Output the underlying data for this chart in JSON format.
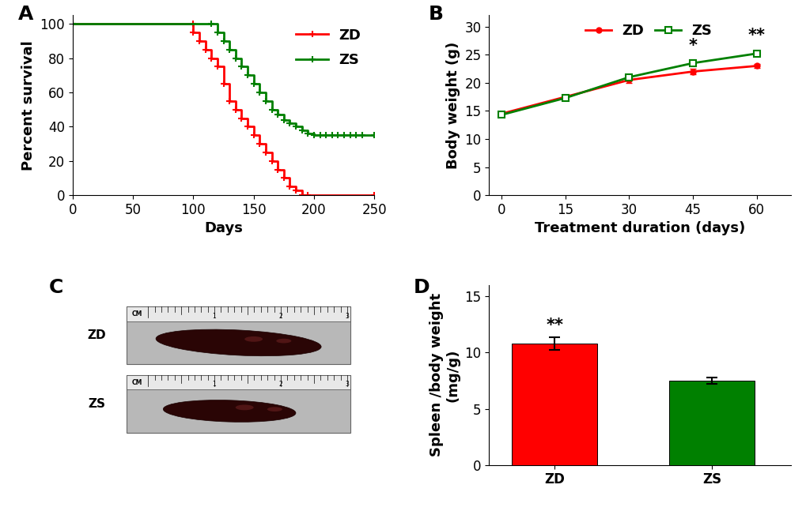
{
  "panel_A": {
    "label": "A",
    "zd_x": [
      0,
      100,
      100,
      105,
      110,
      115,
      120,
      125,
      130,
      135,
      140,
      145,
      150,
      155,
      160,
      165,
      170,
      175,
      180,
      185,
      190,
      195,
      250
    ],
    "zd_y": [
      100,
      100,
      95,
      90,
      85,
      80,
      75,
      65,
      55,
      50,
      45,
      40,
      35,
      30,
      25,
      20,
      15,
      10,
      5,
      3,
      0,
      0,
      0
    ],
    "zs_x": [
      0,
      115,
      120,
      125,
      130,
      135,
      140,
      145,
      150,
      155,
      160,
      165,
      170,
      175,
      180,
      185,
      190,
      195,
      200,
      205,
      210,
      215,
      220,
      225,
      230,
      235,
      240,
      250
    ],
    "zs_y": [
      100,
      100,
      95,
      90,
      85,
      80,
      75,
      70,
      65,
      60,
      55,
      50,
      47,
      44,
      42,
      40,
      38,
      36,
      35,
      35,
      35,
      35,
      35,
      35,
      35,
      35,
      35,
      35
    ],
    "zd_color": "#ff0000",
    "zs_color": "#008000",
    "xlabel": "Days",
    "ylabel": "Percent survival",
    "xlim": [
      0,
      250
    ],
    "ylim": [
      0,
      105
    ],
    "xticks": [
      0,
      50,
      100,
      150,
      200,
      250
    ],
    "yticks": [
      0,
      20,
      40,
      60,
      80,
      100
    ]
  },
  "panel_B": {
    "label": "B",
    "days": [
      0,
      15,
      30,
      45,
      60
    ],
    "zd_mean": [
      14.5,
      17.5,
      20.5,
      22.0,
      23.0
    ],
    "zd_err": [
      0.3,
      0.4,
      0.5,
      0.5,
      0.4
    ],
    "zs_mean": [
      14.3,
      17.3,
      21.0,
      23.5,
      25.2
    ],
    "zs_err": [
      0.3,
      0.4,
      0.5,
      0.5,
      0.5
    ],
    "zd_color": "#ff0000",
    "zs_color": "#008000",
    "xlabel": "Treatment duration (days)",
    "ylabel": "Body weight (g)",
    "xlim": [
      -3,
      68
    ],
    "ylim": [
      0,
      32
    ],
    "xticks": [
      0,
      15,
      30,
      45,
      60
    ],
    "yticks": [
      0,
      5,
      10,
      15,
      20,
      25,
      30
    ],
    "star45": "*",
    "star60": "**",
    "star45_y": 25.2,
    "star60_y": 27.0
  },
  "panel_D": {
    "label": "D",
    "categories": [
      "ZD",
      "ZS"
    ],
    "values": [
      10.8,
      7.5
    ],
    "errors": [
      0.55,
      0.3
    ],
    "colors": [
      "#ff0000",
      "#008000"
    ],
    "ylabel": "Spleen /body weight\n(mg/g)",
    "ylim": [
      0,
      16
    ],
    "yticks": [
      0,
      5,
      10,
      15
    ],
    "annotation": "**"
  },
  "panel_C": {
    "label": "C",
    "zd_label": "ZD",
    "zs_label": "ZS",
    "bg_color": "#c8c8c8",
    "photo_bg": "#d0d0d0",
    "ruler_color": "#f0f0f0",
    "ruler_mark_color": "#000000",
    "spleen_color": "#2a0505"
  },
  "bg_color": "#ffffff",
  "label_fontsize": 18,
  "tick_fontsize": 12,
  "axis_label_fontsize": 13,
  "legend_fontsize": 12
}
